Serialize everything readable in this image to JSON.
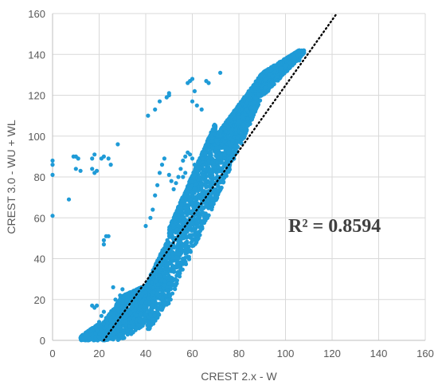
{
  "chart_data": {
    "type": "scatter",
    "title": "",
    "xlabel": "CREST 2.x - W",
    "ylabel": "CREST 3.0 - WU + WL",
    "xlim": [
      0,
      160
    ],
    "ylim": [
      0,
      160
    ],
    "xticks": [
      0,
      20,
      40,
      60,
      80,
      100,
      120,
      140,
      160
    ],
    "yticks": [
      0,
      20,
      40,
      60,
      80,
      100,
      120,
      140,
      160
    ],
    "grid": "vertical and horizontal major gridlines",
    "legend": "none",
    "annotation": "R² = 0.8594",
    "marker_color": "#1F9BD7",
    "trendline": {
      "style": "dotted",
      "color": "#000000",
      "points": [
        [
          22,
          0
        ],
        [
          122,
          160
        ]
      ]
    },
    "series": [
      {
        "points": [
          [
            0,
            61
          ],
          [
            0,
            81
          ],
          [
            0,
            86
          ],
          [
            0,
            88
          ],
          [
            7,
            69
          ],
          [
            9,
            90
          ],
          [
            10,
            90
          ],
          [
            11,
            89
          ],
          [
            12,
            83
          ],
          [
            10,
            84
          ],
          [
            17,
            84
          ],
          [
            18,
            82
          ],
          [
            19,
            83
          ],
          [
            17,
            89
          ],
          [
            18,
            91
          ],
          [
            21,
            89
          ],
          [
            22,
            90
          ],
          [
            24,
            89
          ],
          [
            25,
            86
          ],
          [
            28,
            96
          ],
          [
            22,
            49
          ],
          [
            23,
            51
          ],
          [
            24,
            51
          ],
          [
            22,
            47
          ],
          [
            41,
            110
          ],
          [
            44,
            113
          ],
          [
            46,
            117
          ],
          [
            49,
            119
          ],
          [
            50,
            121
          ],
          [
            50,
            120
          ],
          [
            59,
            127
          ],
          [
            60,
            128
          ],
          [
            58,
            126
          ],
          [
            61,
            122
          ],
          [
            60,
            117
          ],
          [
            62,
            115
          ],
          [
            64,
            113
          ],
          [
            66,
            127
          ],
          [
            67,
            126
          ],
          [
            72,
            131
          ],
          [
            40,
            56
          ],
          [
            42,
            60
          ],
          [
            43,
            64
          ],
          [
            44,
            71
          ],
          [
            45,
            76
          ],
          [
            46,
            82
          ],
          [
            47,
            86
          ],
          [
            48,
            89
          ],
          [
            50,
            81
          ],
          [
            51,
            78
          ],
          [
            52,
            74
          ],
          [
            53,
            77
          ],
          [
            54,
            80
          ],
          [
            55,
            84
          ],
          [
            56,
            88
          ],
          [
            57,
            90
          ],
          [
            58,
            92
          ],
          [
            59,
            91
          ],
          [
            60,
            89
          ],
          [
            61,
            86
          ],
          [
            62,
            83
          ],
          [
            63,
            80
          ],
          [
            56,
            80
          ],
          [
            57,
            82
          ],
          [
            19,
            5
          ],
          [
            20,
            9
          ],
          [
            21,
            12
          ],
          [
            22,
            14
          ],
          [
            23,
            11
          ],
          [
            18,
            16
          ],
          [
            19,
            17
          ],
          [
            17,
            17
          ],
          [
            26,
            26
          ],
          [
            27,
            20
          ],
          [
            29,
            22
          ],
          [
            30,
            25
          ]
        ]
      }
    ]
  }
}
